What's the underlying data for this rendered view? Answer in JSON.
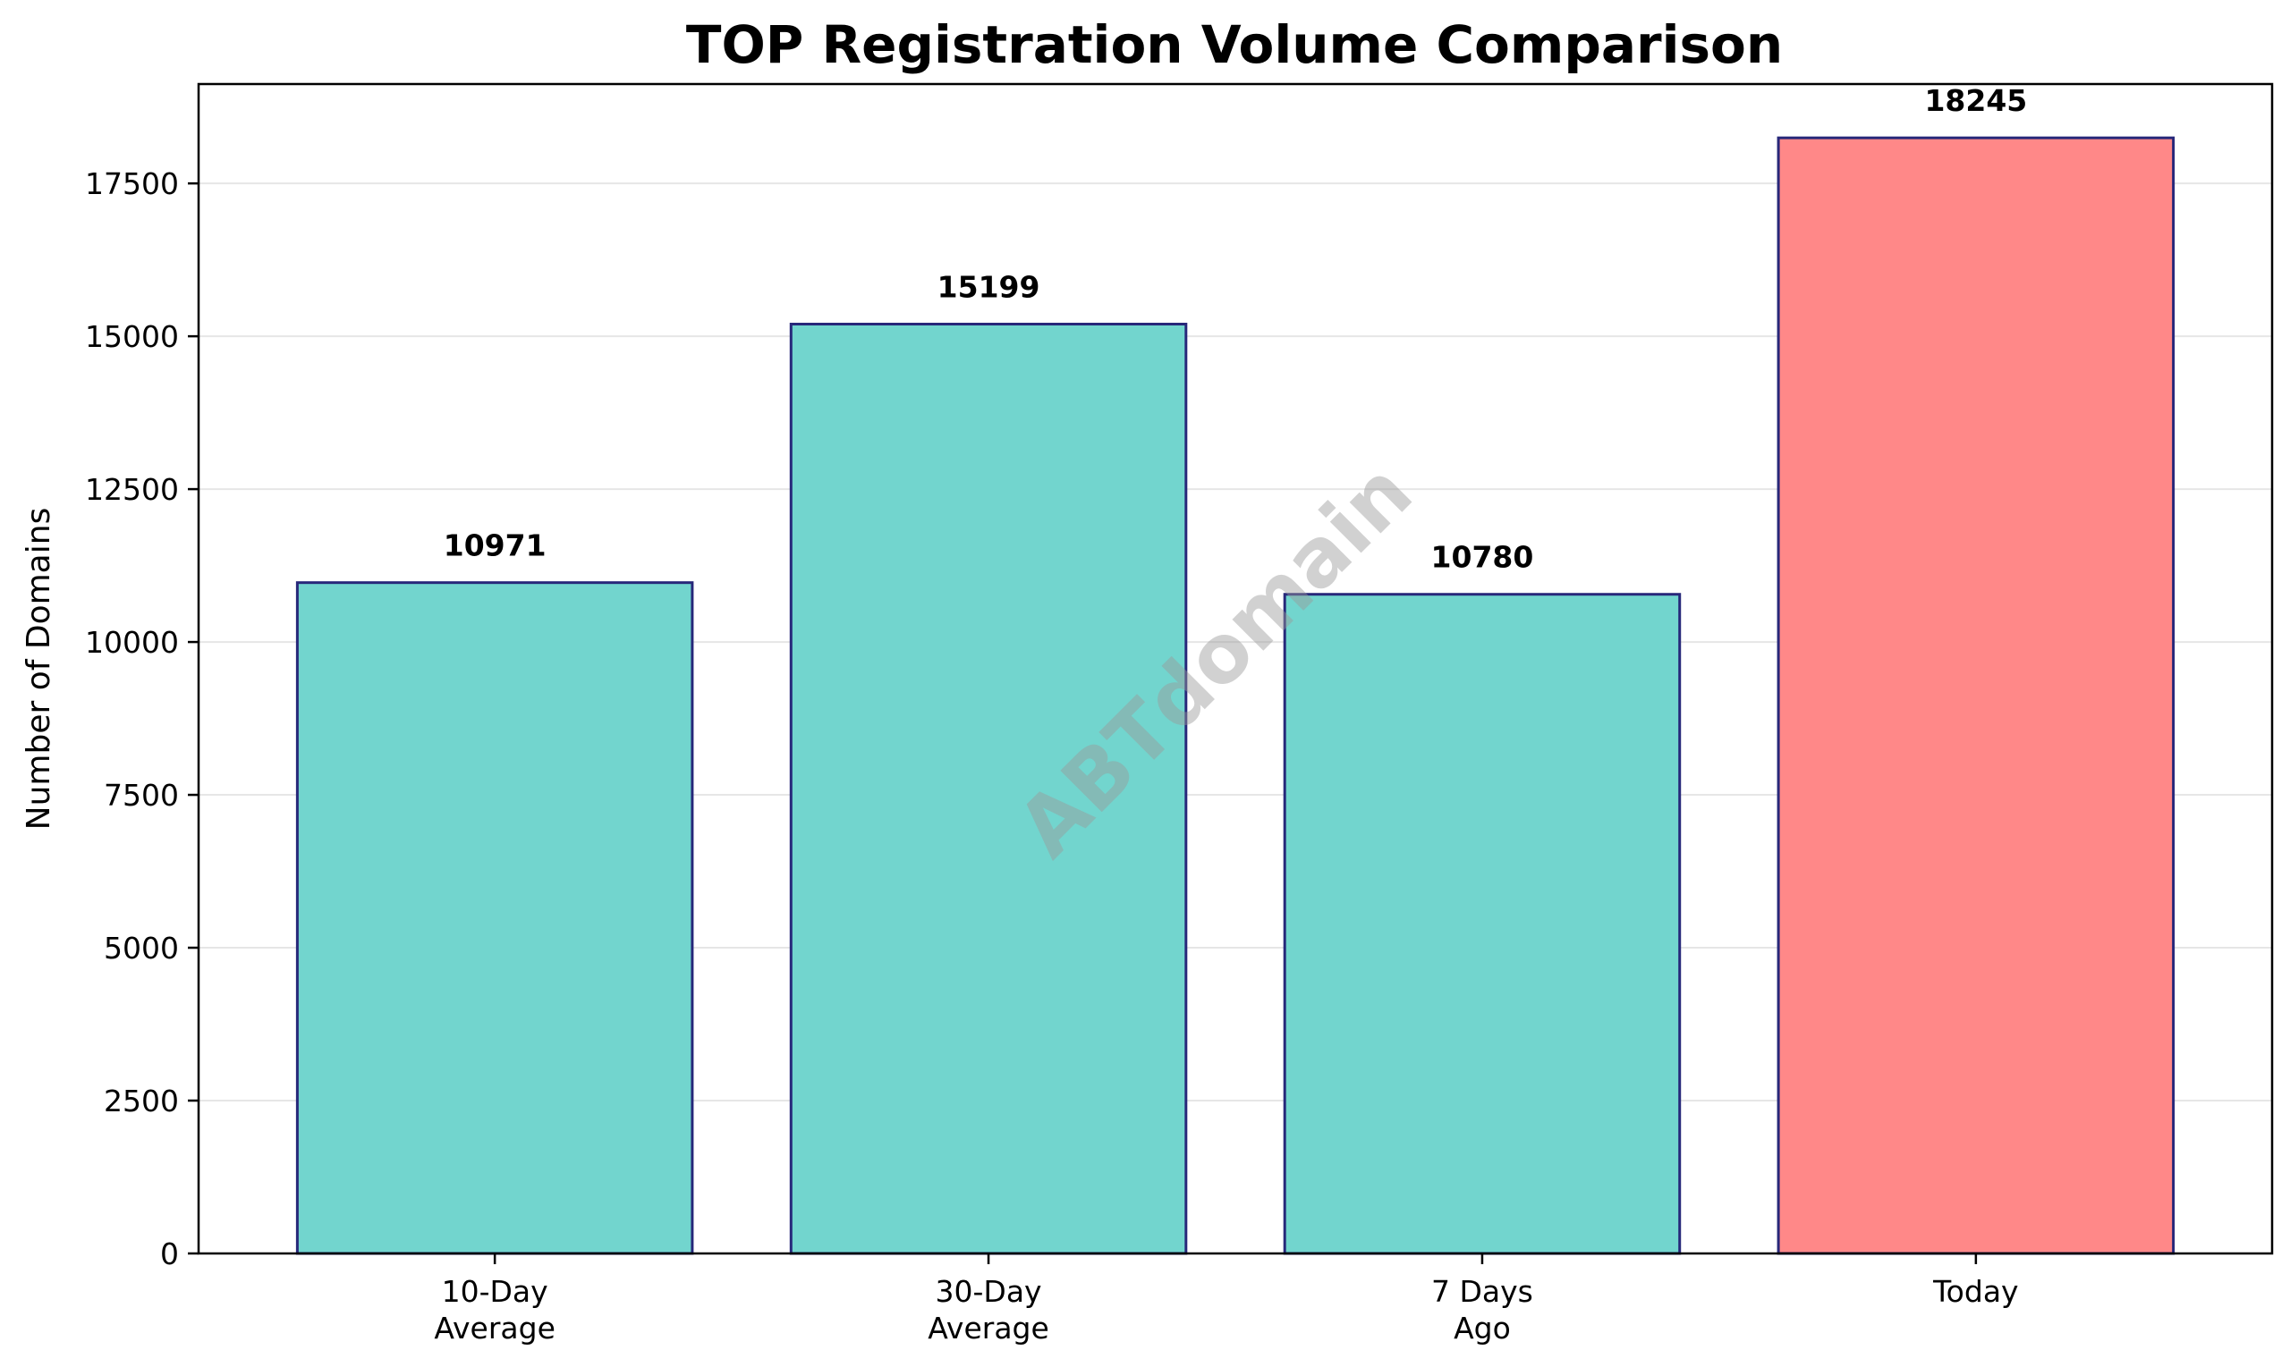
{
  "chart_data": {
    "type": "bar",
    "title": "TOP Registration Volume Comparison",
    "xlabel": "",
    "ylabel": "Number of Domains",
    "categories": [
      [
        "10-Day",
        "Average"
      ],
      [
        "30-Day",
        "Average"
      ],
      [
        "7 Days",
        "Ago"
      ],
      [
        "Today"
      ]
    ],
    "values": [
      10971,
      15199,
      10780,
      18245
    ],
    "value_labels": [
      "10971",
      "15199",
      "10780",
      "18245"
    ],
    "bar_colors": [
      "#72d5ce",
      "#72d5ce",
      "#72d5ce",
      "#ff8888"
    ],
    "bar_edge_color": "#27287a",
    "ylim": [
      0,
      19125
    ],
    "yticks": [
      0,
      2500,
      5000,
      7500,
      10000,
      12500,
      15000,
      17500
    ],
    "ytick_labels": [
      "0",
      "2500",
      "5000",
      "7500",
      "10000",
      "12500",
      "15000",
      "17500"
    ],
    "grid": "horizontal",
    "grid_color": "#e6e6e6",
    "watermark": "ABTdomain"
  }
}
